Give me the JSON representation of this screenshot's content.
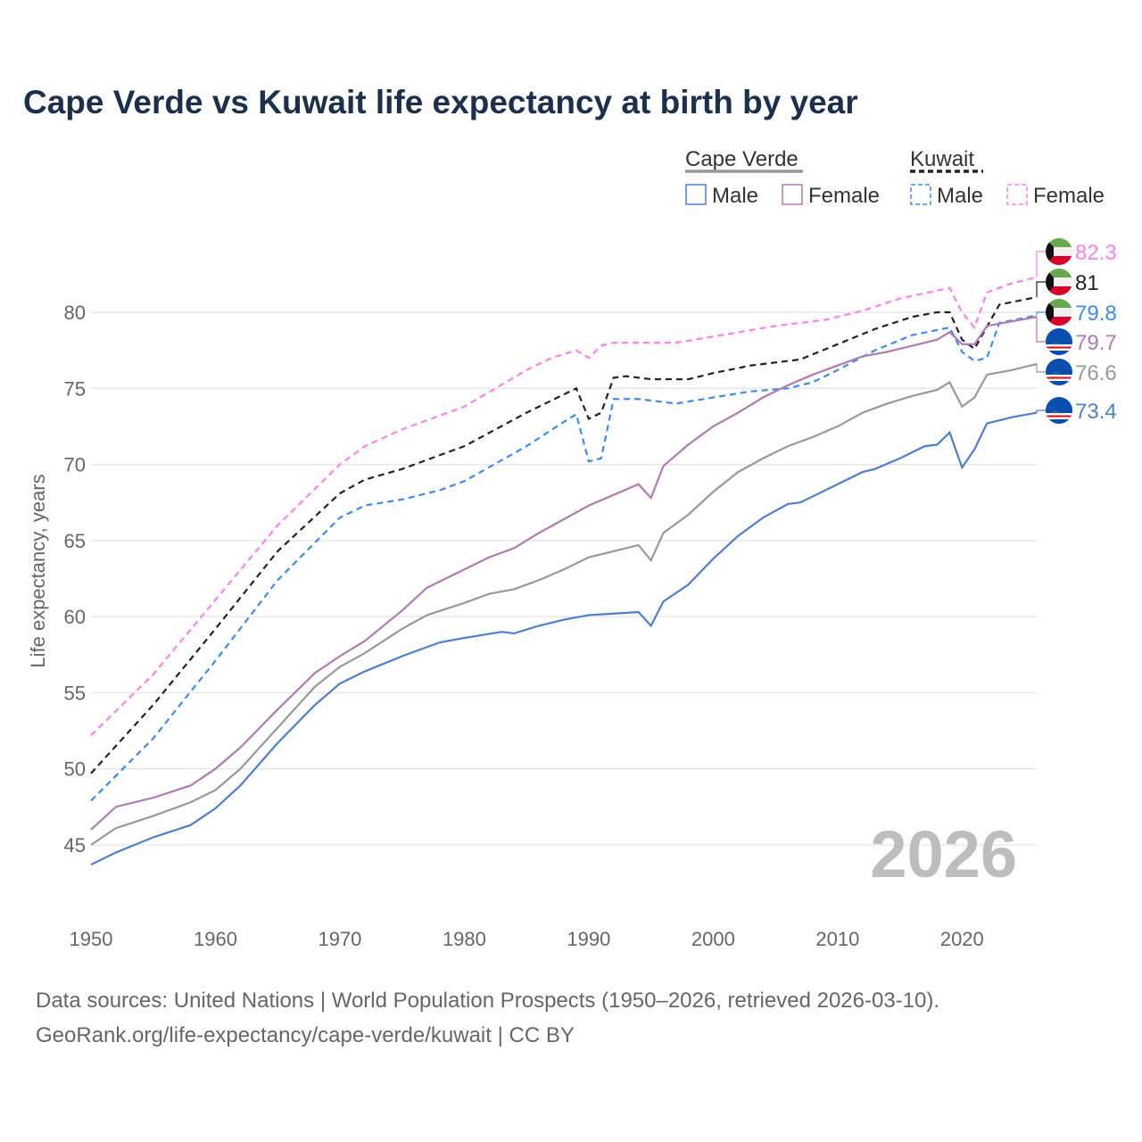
{
  "title": "Cape Verde vs Kuwait life expectancy at birth by year",
  "sources": [
    "Data sources: United Nations | World Population Prospects (1950–2026, retrieved 2026-03-10).",
    "GeoRank.org/life-expectancy/cape-verde/kuwait | CC BY"
  ],
  "year_watermark": "2026",
  "legend": {
    "groups": [
      {
        "label": "Cape Verde",
        "color": "#999999",
        "dashed": false,
        "items": [
          {
            "label": "Male",
            "color": "#4f7ecf"
          },
          {
            "label": "Female",
            "color": "#b07ab5"
          }
        ]
      },
      {
        "label": "Kuwait",
        "color": "#222222",
        "dashed": true,
        "items": [
          {
            "label": "Male",
            "color": "#3d8bf2"
          },
          {
            "label": "Female",
            "color": "#ff80f0"
          }
        ]
      }
    ]
  },
  "chart_data": {
    "type": "line",
    "title": "Cape Verde vs Kuwait life expectancy at birth by year",
    "xlabel": "",
    "ylabel": "Life expectancy, years",
    "xlim": [
      1950,
      2026
    ],
    "ylim": [
      41.2,
      81.2
    ],
    "xticks": [
      1950,
      1960,
      1970,
      1980,
      1990,
      2000,
      2010,
      2020
    ],
    "yticks": [
      45,
      50,
      55,
      60,
      65,
      70,
      75,
      80
    ],
    "grid": true,
    "series": [
      {
        "name": "Kuwait Female",
        "label": "82.3",
        "color": "#ff80f0",
        "dashed": true,
        "flag": "kuwait",
        "points": [
          [
            1950,
            52.2
          ],
          [
            1955,
            56.2
          ],
          [
            1960,
            61.1
          ],
          [
            1965,
            66.0
          ],
          [
            1970,
            70.0
          ],
          [
            1972,
            71.2
          ],
          [
            1975,
            72.3
          ],
          [
            1980,
            73.8
          ],
          [
            1985,
            76.2
          ],
          [
            1987,
            77.0
          ],
          [
            1989,
            77.5
          ],
          [
            1990,
            77.0
          ],
          [
            1991,
            77.8
          ],
          [
            1992,
            78.0
          ],
          [
            1997,
            78.0
          ],
          [
            2000,
            78.4
          ],
          [
            2005,
            79.1
          ],
          [
            2009,
            79.5
          ],
          [
            2012,
            80.1
          ],
          [
            2015,
            80.9
          ],
          [
            2019,
            81.6
          ],
          [
            2020,
            80.0
          ],
          [
            2021,
            79.0
          ],
          [
            2022,
            81.3
          ],
          [
            2024,
            81.9
          ],
          [
            2026,
            82.3
          ]
        ]
      },
      {
        "name": "Kuwait",
        "label": "81",
        "color": "#222222",
        "dashed": true,
        "flag": "kuwait",
        "points": [
          [
            1950,
            49.7
          ],
          [
            1955,
            54.2
          ],
          [
            1960,
            59.2
          ],
          [
            1965,
            64.3
          ],
          [
            1970,
            68.1
          ],
          [
            1972,
            69.0
          ],
          [
            1975,
            69.7
          ],
          [
            1980,
            71.2
          ],
          [
            1985,
            73.4
          ],
          [
            1989,
            75.0
          ],
          [
            1990,
            73.0
          ],
          [
            1991,
            73.4
          ],
          [
            1992,
            75.7
          ],
          [
            1993,
            75.8
          ],
          [
            1995,
            75.6
          ],
          [
            1998,
            75.6
          ],
          [
            2000,
            76.0
          ],
          [
            2003,
            76.5
          ],
          [
            2007,
            76.9
          ],
          [
            2010,
            77.9
          ],
          [
            2013,
            78.9
          ],
          [
            2016,
            79.7
          ],
          [
            2018,
            80.0
          ],
          [
            2019,
            80.0
          ],
          [
            2020,
            78.2
          ],
          [
            2021,
            77.6
          ],
          [
            2023,
            80.5
          ],
          [
            2026,
            81.0
          ]
        ]
      },
      {
        "name": "Kuwait Male",
        "label": "79.8",
        "color": "#3d8bf2",
        "dashed": true,
        "flag": "kuwait",
        "points": [
          [
            1950,
            47.9
          ],
          [
            1955,
            52.0
          ],
          [
            1960,
            57.1
          ],
          [
            1965,
            62.4
          ],
          [
            1970,
            66.5
          ],
          [
            1972,
            67.3
          ],
          [
            1975,
            67.7
          ],
          [
            1978,
            68.3
          ],
          [
            1980,
            68.9
          ],
          [
            1985,
            71.2
          ],
          [
            1988,
            72.8
          ],
          [
            1989,
            73.3
          ],
          [
            1990,
            70.2
          ],
          [
            1991,
            70.4
          ],
          [
            1992,
            74.3
          ],
          [
            1994,
            74.3
          ],
          [
            1997,
            74.0
          ],
          [
            2000,
            74.4
          ],
          [
            2003,
            74.8
          ],
          [
            2006,
            75.0
          ],
          [
            2008,
            75.4
          ],
          [
            2010,
            76.2
          ],
          [
            2013,
            77.5
          ],
          [
            2016,
            78.5
          ],
          [
            2019,
            79.0
          ],
          [
            2020,
            77.4
          ],
          [
            2021,
            76.8
          ],
          [
            2022,
            77.0
          ],
          [
            2023,
            79.3
          ],
          [
            2026,
            79.8
          ]
        ]
      },
      {
        "name": "Cape Verde Female",
        "label": "79.7",
        "color": "#b07ab5",
        "dashed": false,
        "flag": "cape-verde",
        "points": [
          [
            1950,
            46.0
          ],
          [
            1952,
            47.5
          ],
          [
            1955,
            48.1
          ],
          [
            1958,
            48.9
          ],
          [
            1960,
            50.0
          ],
          [
            1962,
            51.4
          ],
          [
            1965,
            53.9
          ],
          [
            1968,
            56.3
          ],
          [
            1970,
            57.4
          ],
          [
            1972,
            58.4
          ],
          [
            1975,
            60.4
          ],
          [
            1977,
            61.9
          ],
          [
            1980,
            63.1
          ],
          [
            1982,
            63.9
          ],
          [
            1984,
            64.5
          ],
          [
            1986,
            65.5
          ],
          [
            1988,
            66.4
          ],
          [
            1990,
            67.3
          ],
          [
            1992,
            68.0
          ],
          [
            1994,
            68.7
          ],
          [
            1995,
            67.8
          ],
          [
            1996,
            69.9
          ],
          [
            1998,
            71.3
          ],
          [
            2000,
            72.5
          ],
          [
            2002,
            73.4
          ],
          [
            2004,
            74.4
          ],
          [
            2006,
            75.2
          ],
          [
            2008,
            75.9
          ],
          [
            2010,
            76.5
          ],
          [
            2012,
            77.1
          ],
          [
            2014,
            77.4
          ],
          [
            2016,
            77.8
          ],
          [
            2018,
            78.2
          ],
          [
            2019,
            78.7
          ],
          [
            2020,
            77.9
          ],
          [
            2021,
            77.9
          ],
          [
            2022,
            79.1
          ],
          [
            2026,
            79.7
          ]
        ]
      },
      {
        "name": "Cape Verde",
        "label": "76.6",
        "color": "#999999",
        "dashed": false,
        "flag": "cape-verde",
        "points": [
          [
            1950,
            45.0
          ],
          [
            1952,
            46.1
          ],
          [
            1955,
            46.9
          ],
          [
            1958,
            47.8
          ],
          [
            1960,
            48.6
          ],
          [
            1962,
            50.0
          ],
          [
            1965,
            52.7
          ],
          [
            1968,
            55.4
          ],
          [
            1970,
            56.7
          ],
          [
            1972,
            57.6
          ],
          [
            1975,
            59.2
          ],
          [
            1977,
            60.1
          ],
          [
            1980,
            60.9
          ],
          [
            1982,
            61.5
          ],
          [
            1984,
            61.8
          ],
          [
            1986,
            62.4
          ],
          [
            1988,
            63.1
          ],
          [
            1990,
            63.9
          ],
          [
            1992,
            64.3
          ],
          [
            1994,
            64.7
          ],
          [
            1995,
            63.7
          ],
          [
            1996,
            65.5
          ],
          [
            1998,
            66.7
          ],
          [
            2000,
            68.2
          ],
          [
            2002,
            69.5
          ],
          [
            2004,
            70.4
          ],
          [
            2006,
            71.2
          ],
          [
            2008,
            71.8
          ],
          [
            2010,
            72.5
          ],
          [
            2012,
            73.4
          ],
          [
            2014,
            74.0
          ],
          [
            2016,
            74.5
          ],
          [
            2018,
            74.9
          ],
          [
            2019,
            75.4
          ],
          [
            2020,
            73.8
          ],
          [
            2021,
            74.4
          ],
          [
            2022,
            75.9
          ],
          [
            2024,
            76.2
          ],
          [
            2026,
            76.6
          ]
        ]
      },
      {
        "name": "Cape Verde Male",
        "label": "73.4",
        "color": "#4f7ecf",
        "dashed": false,
        "flag": "cape-verde",
        "points": [
          [
            1950,
            43.7
          ],
          [
            1952,
            44.5
          ],
          [
            1955,
            45.5
          ],
          [
            1958,
            46.3
          ],
          [
            1960,
            47.4
          ],
          [
            1962,
            48.9
          ],
          [
            1965,
            51.7
          ],
          [
            1968,
            54.2
          ],
          [
            1970,
            55.6
          ],
          [
            1972,
            56.4
          ],
          [
            1975,
            57.4
          ],
          [
            1978,
            58.3
          ],
          [
            1980,
            58.6
          ],
          [
            1983,
            59.0
          ],
          [
            1984,
            58.9
          ],
          [
            1986,
            59.4
          ],
          [
            1988,
            59.8
          ],
          [
            1990,
            60.1
          ],
          [
            1992,
            60.2
          ],
          [
            1994,
            60.3
          ],
          [
            1995,
            59.4
          ],
          [
            1996,
            61.0
          ],
          [
            1998,
            62.1
          ],
          [
            2000,
            63.8
          ],
          [
            2002,
            65.3
          ],
          [
            2004,
            66.5
          ],
          [
            2006,
            67.4
          ],
          [
            2007,
            67.5
          ],
          [
            2009,
            68.3
          ],
          [
            2010,
            68.7
          ],
          [
            2012,
            69.5
          ],
          [
            2013,
            69.7
          ],
          [
            2015,
            70.4
          ],
          [
            2017,
            71.2
          ],
          [
            2018,
            71.3
          ],
          [
            2019,
            72.1
          ],
          [
            2020,
            69.8
          ],
          [
            2021,
            71.0
          ],
          [
            2022,
            72.7
          ],
          [
            2024,
            73.1
          ],
          [
            2026,
            73.4
          ]
        ]
      }
    ]
  }
}
